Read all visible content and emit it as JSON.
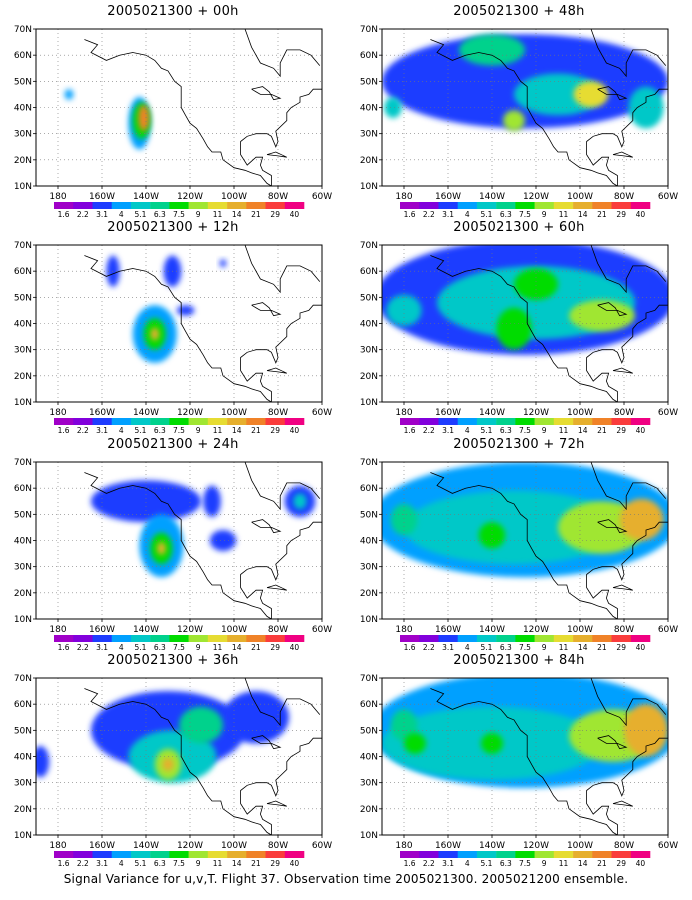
{
  "figure": {
    "caption": "Signal Variance for u,v,T. Flight 37. Observation time 2005021300. 2005021200 ensemble.",
    "panels": [
      {
        "title": "2005021300 + 00h",
        "forecast_hour": 0,
        "blobs": [
          {
            "lon": -143,
            "lat": 34,
            "rx": 5,
            "ry": 10,
            "level": 3
          },
          {
            "lon": -142,
            "lat": 35,
            "rx": 4,
            "ry": 7,
            "level": 6
          },
          {
            "lon": -141,
            "lat": 36,
            "rx": 2.5,
            "ry": 5,
            "level": 10
          },
          {
            "lon": -175,
            "lat": 45,
            "rx": 2,
            "ry": 2,
            "level": 3
          }
        ]
      },
      {
        "title": "2005021300 + 12h",
        "forecast_hour": 12,
        "blobs": [
          {
            "lon": -136,
            "lat": 36,
            "rx": 10,
            "ry": 11,
            "level": 3
          },
          {
            "lon": -136,
            "lat": 36,
            "rx": 5,
            "ry": 6,
            "level": 6
          },
          {
            "lon": -136,
            "lat": 36,
            "rx": 2,
            "ry": 2.5,
            "level": 9
          },
          {
            "lon": -155,
            "lat": 60,
            "rx": 3,
            "ry": 6,
            "level": 2
          },
          {
            "lon": -128,
            "lat": 60,
            "rx": 4,
            "ry": 6,
            "level": 2
          },
          {
            "lon": -122,
            "lat": 45,
            "rx": 4,
            "ry": 2,
            "level": 2
          },
          {
            "lon": -105,
            "lat": 63,
            "rx": 1.5,
            "ry": 1.5,
            "level": 2
          }
        ]
      },
      {
        "title": "2005021300 + 24h",
        "forecast_hour": 24,
        "blobs": [
          {
            "lon": -140,
            "lat": 55,
            "rx": 25,
            "ry": 8,
            "level": 2
          },
          {
            "lon": -133,
            "lat": 38,
            "rx": 10,
            "ry": 12,
            "level": 3
          },
          {
            "lon": -133,
            "lat": 37,
            "rx": 5,
            "ry": 6,
            "level": 6
          },
          {
            "lon": -133,
            "lat": 37,
            "rx": 2,
            "ry": 2.5,
            "level": 9
          },
          {
            "lon": -110,
            "lat": 55,
            "rx": 4,
            "ry": 6,
            "level": 2
          },
          {
            "lon": -70,
            "lat": 55,
            "rx": 7,
            "ry": 6,
            "level": 2
          },
          {
            "lon": -70,
            "lat": 55,
            "rx": 3,
            "ry": 3,
            "level": 4
          },
          {
            "lon": -105,
            "lat": 40,
            "rx": 6,
            "ry": 4,
            "level": 2
          }
        ]
      },
      {
        "title": "2005021300 + 36h",
        "forecast_hour": 36,
        "blobs": [
          {
            "lon": -130,
            "lat": 50,
            "rx": 35,
            "ry": 15,
            "level": 2
          },
          {
            "lon": -128,
            "lat": 40,
            "rx": 20,
            "ry": 10,
            "level": 4
          },
          {
            "lon": -130,
            "lat": 37,
            "rx": 6,
            "ry": 6,
            "level": 7
          },
          {
            "lon": -130,
            "lat": 37,
            "rx": 2.5,
            "ry": 2.5,
            "level": 9
          },
          {
            "lon": -115,
            "lat": 52,
            "rx": 10,
            "ry": 7,
            "level": 5
          },
          {
            "lon": -90,
            "lat": 55,
            "rx": 15,
            "ry": 10,
            "level": 2
          },
          {
            "lon": -188,
            "lat": 38,
            "rx": 4,
            "ry": 6,
            "level": 2
          }
        ]
      },
      {
        "title": "2005021300 + 48h",
        "forecast_hour": 48,
        "blobs": [
          {
            "lon": -125,
            "lat": 50,
            "rx": 65,
            "ry": 18,
            "level": 2
          },
          {
            "lon": -140,
            "lat": 62,
            "rx": 15,
            "ry": 6,
            "level": 5
          },
          {
            "lon": -110,
            "lat": 45,
            "rx": 20,
            "ry": 8,
            "level": 4
          },
          {
            "lon": -95,
            "lat": 45,
            "rx": 8,
            "ry": 5,
            "level": 8
          },
          {
            "lon": -130,
            "lat": 35,
            "rx": 5,
            "ry": 4,
            "level": 7
          },
          {
            "lon": -185,
            "lat": 40,
            "rx": 4,
            "ry": 4,
            "level": 4
          },
          {
            "lon": -70,
            "lat": 40,
            "rx": 8,
            "ry": 8,
            "level": 4
          }
        ]
      },
      {
        "title": "2005021300 + 60h",
        "forecast_hour": 60,
        "blobs": [
          {
            "lon": -125,
            "lat": 50,
            "rx": 68,
            "ry": 22,
            "level": 2
          },
          {
            "lon": -120,
            "lat": 48,
            "rx": 45,
            "ry": 14,
            "level": 4
          },
          {
            "lon": -130,
            "lat": 38,
            "rx": 8,
            "ry": 8,
            "level": 6
          },
          {
            "lon": -90,
            "lat": 43,
            "rx": 15,
            "ry": 6,
            "level": 7
          },
          {
            "lon": -120,
            "lat": 55,
            "rx": 10,
            "ry": 6,
            "level": 6
          },
          {
            "lon": -180,
            "lat": 45,
            "rx": 8,
            "ry": 6,
            "level": 4
          }
        ]
      },
      {
        "title": "2005021300 + 72h",
        "forecast_hour": 72,
        "blobs": [
          {
            "lon": -125,
            "lat": 48,
            "rx": 70,
            "ry": 22,
            "level": 3
          },
          {
            "lon": -130,
            "lat": 45,
            "rx": 50,
            "ry": 14,
            "level": 4
          },
          {
            "lon": -90,
            "lat": 45,
            "rx": 20,
            "ry": 10,
            "level": 7
          },
          {
            "lon": -72,
            "lat": 48,
            "rx": 10,
            "ry": 8,
            "level": 9
          },
          {
            "lon": -180,
            "lat": 48,
            "rx": 6,
            "ry": 6,
            "level": 5
          },
          {
            "lon": -140,
            "lat": 42,
            "rx": 6,
            "ry": 5,
            "level": 6
          }
        ]
      },
      {
        "title": "2005021300 + 84h",
        "forecast_hour": 84,
        "blobs": [
          {
            "lon": -125,
            "lat": 50,
            "rx": 70,
            "ry": 22,
            "level": 3
          },
          {
            "lon": -140,
            "lat": 45,
            "rx": 50,
            "ry": 14,
            "level": 4
          },
          {
            "lon": -85,
            "lat": 48,
            "rx": 20,
            "ry": 10,
            "level": 7
          },
          {
            "lon": -70,
            "lat": 50,
            "rx": 10,
            "ry": 10,
            "level": 9
          },
          {
            "lon": -180,
            "lat": 52,
            "rx": 6,
            "ry": 6,
            "level": 5
          },
          {
            "lon": -140,
            "lat": 45,
            "rx": 5,
            "ry": 4,
            "level": 6
          },
          {
            "lon": -175,
            "lat": 45,
            "rx": 5,
            "ry": 4,
            "level": 6
          }
        ]
      }
    ],
    "axes": {
      "lon_range": [
        -190,
        -60
      ],
      "lat_range": [
        10,
        70
      ],
      "lat_ticks": [
        {
          "value": 10,
          "label": "10N"
        },
        {
          "value": 20,
          "label": "20N"
        },
        {
          "value": 30,
          "label": "30N"
        },
        {
          "value": 40,
          "label": "40N"
        },
        {
          "value": 50,
          "label": "50N"
        },
        {
          "value": 60,
          "label": "60N"
        },
        {
          "value": 70,
          "label": "70N"
        }
      ],
      "lon_ticks": [
        {
          "value": -180,
          "label": "180"
        },
        {
          "value": -160,
          "label": "160W"
        },
        {
          "value": -140,
          "label": "140W"
        },
        {
          "value": -120,
          "label": "120W"
        },
        {
          "value": -100,
          "label": "100W"
        },
        {
          "value": -80,
          "label": "80W"
        },
        {
          "value": -60,
          "label": "60W"
        }
      ]
    },
    "colorbar": {
      "labels": [
        "1.6",
        "2.2",
        "3.1",
        "4",
        "5.1",
        "6.3",
        "7.5",
        "9",
        "11",
        "14",
        "21",
        "29",
        "40"
      ],
      "colors": [
        "#a000c8",
        "#8200dc",
        "#1e3cff",
        "#00a0ff",
        "#00c8c8",
        "#00d28c",
        "#00dc00",
        "#a0e632",
        "#e6dc32",
        "#e6af2d",
        "#f08228",
        "#fa3c3c",
        "#f00082"
      ]
    }
  }
}
